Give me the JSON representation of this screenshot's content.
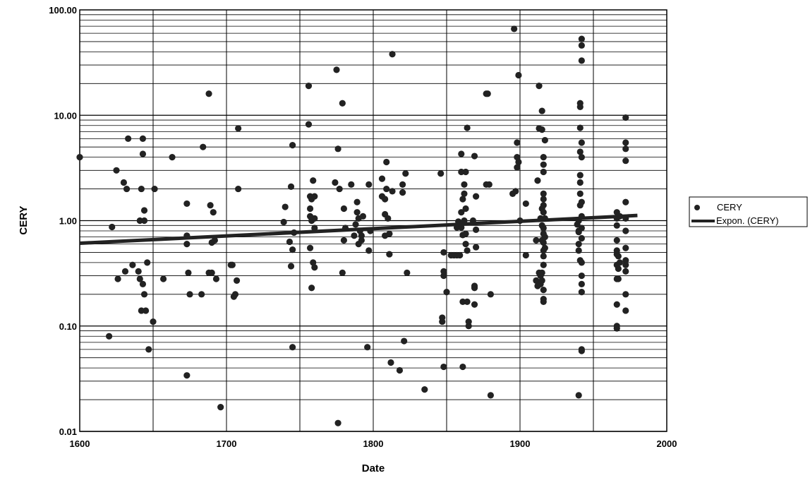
{
  "chart_data": {
    "type": "scatter",
    "title": "",
    "xlabel": "Date",
    "ylabel": "CERY",
    "xlim": [
      1600,
      2000
    ],
    "ylim": [
      0.01,
      100
    ],
    "y_scale": "log",
    "x_ticks": [
      "1600",
      "1700",
      "1800",
      "1900",
      "2000"
    ],
    "y_ticks": [
      "0.01",
      "0.10",
      "1.00",
      "10.00",
      "100.00"
    ],
    "grid": true,
    "legend": "right",
    "colors": {
      "points": "#222222",
      "trend": "#222222",
      "grid": "#000000"
    },
    "series": [
      {
        "name": "CERY",
        "kind": "scatter",
        "points": [
          [
            1600,
            4.0
          ],
          [
            1620,
            0.08
          ],
          [
            1622,
            0.87
          ],
          [
            1625,
            3.0
          ],
          [
            1626,
            0.28
          ],
          [
            1630,
            2.3
          ],
          [
            1631,
            0.33
          ],
          [
            1632,
            2.0
          ],
          [
            1633,
            6.0
          ],
          [
            1636,
            0.38
          ],
          [
            1640,
            0.33
          ],
          [
            1641,
            1.0
          ],
          [
            1641,
            0.28
          ],
          [
            1642,
            0.14
          ],
          [
            1642,
            2.0
          ],
          [
            1643,
            0.25
          ],
          [
            1643,
            4.3
          ],
          [
            1643,
            6.0
          ],
          [
            1644,
            1.25
          ],
          [
            1644,
            1.0
          ],
          [
            1644,
            0.2
          ],
          [
            1645,
            0.14
          ],
          [
            1646,
            0.4
          ],
          [
            1647,
            0.06
          ],
          [
            1650,
            0.11
          ],
          [
            1651,
            2.0
          ],
          [
            1657,
            0.28
          ],
          [
            1663,
            4.0
          ],
          [
            1673,
            1.45
          ],
          [
            1673,
            0.72
          ],
          [
            1673,
            0.6
          ],
          [
            1673,
            0.034
          ],
          [
            1674,
            0.32
          ],
          [
            1675,
            0.2
          ],
          [
            1683,
            0.2
          ],
          [
            1684,
            5.0
          ],
          [
            1688,
            16.0
          ],
          [
            1688,
            0.32
          ],
          [
            1689,
            1.4
          ],
          [
            1690,
            0.32
          ],
          [
            1690,
            0.62
          ],
          [
            1691,
            1.2
          ],
          [
            1692,
            0.65
          ],
          [
            1693,
            0.28
          ],
          [
            1696,
            0.017
          ],
          [
            1703,
            0.38
          ],
          [
            1704,
            0.38
          ],
          [
            1705,
            0.19
          ],
          [
            1706,
            0.2
          ],
          [
            1707,
            0.27
          ],
          [
            1708,
            7.5
          ],
          [
            1708,
            2.0
          ],
          [
            1739,
            0.97
          ],
          [
            1740,
            1.35
          ],
          [
            1743,
            0.63
          ],
          [
            1744,
            0.37
          ],
          [
            1744,
            2.1
          ],
          [
            1745,
            5.2
          ],
          [
            1745,
            0.063
          ],
          [
            1745,
            0.53
          ],
          [
            1746,
            0.77
          ],
          [
            1756,
            19.0
          ],
          [
            1756,
            8.2
          ],
          [
            1757,
            1.1
          ],
          [
            1757,
            1.7
          ],
          [
            1757,
            1.3
          ],
          [
            1757,
            0.55
          ],
          [
            1758,
            1.0
          ],
          [
            1758,
            0.23
          ],
          [
            1758,
            1.6
          ],
          [
            1759,
            0.4
          ],
          [
            1759,
            2.4
          ],
          [
            1760,
            1.05
          ],
          [
            1760,
            1.7
          ],
          [
            1760,
            0.36
          ],
          [
            1760,
            0.85
          ],
          [
            1774,
            2.3
          ],
          [
            1775,
            27.0
          ],
          [
            1776,
            0.012
          ],
          [
            1776,
            4.8
          ],
          [
            1777,
            2.0
          ],
          [
            1779,
            0.32
          ],
          [
            1779,
            13.0
          ],
          [
            1780,
            0.65
          ],
          [
            1780,
            1.3
          ],
          [
            1781,
            0.85
          ],
          [
            1785,
            2.2
          ],
          [
            1787,
            0.72
          ],
          [
            1788,
            0.92
          ],
          [
            1789,
            1.5
          ],
          [
            1789,
            1.2
          ],
          [
            1790,
            0.6
          ],
          [
            1790,
            1.05
          ],
          [
            1791,
            0.8
          ],
          [
            1792,
            0.72
          ],
          [
            1792,
            0.65
          ],
          [
            1793,
            1.1
          ],
          [
            1796,
            0.063
          ],
          [
            1797,
            2.2
          ],
          [
            1797,
            0.52
          ],
          [
            1798,
            0.8
          ],
          [
            1806,
            2.5
          ],
          [
            1806,
            1.7
          ],
          [
            1808,
            1.6
          ],
          [
            1808,
            0.72
          ],
          [
            1808,
            1.15
          ],
          [
            1809,
            3.6
          ],
          [
            1809,
            2.0
          ],
          [
            1810,
            1.05
          ],
          [
            1811,
            0.48
          ],
          [
            1811,
            0.75
          ],
          [
            1812,
            0.045
          ],
          [
            1813,
            38.0
          ],
          [
            1813,
            1.9
          ],
          [
            1818,
            0.038
          ],
          [
            1820,
            2.2
          ],
          [
            1820,
            1.85
          ],
          [
            1821,
            0.072
          ],
          [
            1822,
            2.8
          ],
          [
            1823,
            0.32
          ],
          [
            1835,
            0.025
          ],
          [
            1846,
            2.8
          ],
          [
            1847,
            0.12
          ],
          [
            1847,
            0.11
          ],
          [
            1848,
            0.33
          ],
          [
            1848,
            0.3
          ],
          [
            1848,
            0.5
          ],
          [
            1848,
            0.041
          ],
          [
            1850,
            0.21
          ],
          [
            1853,
            0.47
          ],
          [
            1855,
            0.47
          ],
          [
            1857,
            0.47
          ],
          [
            1857,
            0.86
          ],
          [
            1858,
            0.98
          ],
          [
            1859,
            0.47
          ],
          [
            1860,
            1.2
          ],
          [
            1860,
            4.3
          ],
          [
            1860,
            2.9
          ],
          [
            1860,
            0.86
          ],
          [
            1861,
            1.6
          ],
          [
            1861,
            0.041
          ],
          [
            1861,
            0.73
          ],
          [
            1861,
            0.17
          ],
          [
            1862,
            1.0
          ],
          [
            1862,
            2.2
          ],
          [
            1862,
            1.8
          ],
          [
            1863,
            1.3
          ],
          [
            1863,
            0.6
          ],
          [
            1863,
            0.75
          ],
          [
            1863,
            2.9
          ],
          [
            1864,
            0.52
          ],
          [
            1864,
            7.6
          ],
          [
            1864,
            0.17
          ],
          [
            1865,
            0.11
          ],
          [
            1865,
            0.1
          ],
          [
            1868,
            1.0
          ],
          [
            1869,
            0.24
          ],
          [
            1869,
            0.23
          ],
          [
            1869,
            0.16
          ],
          [
            1869,
            4.1
          ],
          [
            1870,
            0.82
          ],
          [
            1870,
            0.56
          ],
          [
            1870,
            1.7
          ],
          [
            1877,
            16.0
          ],
          [
            1877,
            2.2
          ],
          [
            1878,
            16.0
          ],
          [
            1879,
            2.2
          ],
          [
            1880,
            0.022
          ],
          [
            1880,
            0.2
          ],
          [
            1895,
            1.8
          ],
          [
            1896,
            66.0
          ],
          [
            1897,
            1.9
          ],
          [
            1898,
            3.2
          ],
          [
            1898,
            5.5
          ],
          [
            1898,
            4.0
          ],
          [
            1899,
            24.0
          ],
          [
            1899,
            3.6
          ],
          [
            1900,
            1.0
          ],
          [
            1904,
            1.45
          ],
          [
            1904,
            0.47
          ],
          [
            1911,
            0.65
          ],
          [
            1911,
            0.27
          ],
          [
            1912,
            2.4
          ],
          [
            1912,
            0.24
          ],
          [
            1913,
            19.0
          ],
          [
            1913,
            0.32
          ],
          [
            1913,
            7.5
          ],
          [
            1914,
            1.05
          ],
          [
            1914,
            0.25
          ],
          [
            1914,
            0.3
          ],
          [
            1915,
            7.3
          ],
          [
            1915,
            1.3
          ],
          [
            1915,
            0.9
          ],
          [
            1915,
            0.65
          ],
          [
            1915,
            11.0
          ],
          [
            1915,
            0.32
          ],
          [
            1915,
            0.27
          ],
          [
            1916,
            0.22
          ],
          [
            1916,
            1.8
          ],
          [
            1916,
            4.0
          ],
          [
            1916,
            3.4
          ],
          [
            1916,
            2.9
          ],
          [
            1916,
            1.6
          ],
          [
            1916,
            1.4
          ],
          [
            1916,
            1.2
          ],
          [
            1916,
            0.85
          ],
          [
            1916,
            0.75
          ],
          [
            1916,
            0.62
          ],
          [
            1916,
            0.52
          ],
          [
            1916,
            0.46
          ],
          [
            1916,
            0.38
          ],
          [
            1916,
            0.18
          ],
          [
            1916,
            0.17
          ],
          [
            1917,
            5.8
          ],
          [
            1917,
            1.05
          ],
          [
            1917,
            0.7
          ],
          [
            1917,
            0.55
          ],
          [
            1939,
            0.92
          ],
          [
            1940,
            0.78
          ],
          [
            1940,
            1.0
          ],
          [
            1940,
            0.8
          ],
          [
            1940,
            0.52
          ],
          [
            1940,
            0.6
          ],
          [
            1940,
            0.022
          ],
          [
            1941,
            1.4
          ],
          [
            1941,
            4.5
          ],
          [
            1941,
            7.6
          ],
          [
            1941,
            2.7
          ],
          [
            1941,
            2.3
          ],
          [
            1941,
            1.8
          ],
          [
            1941,
            12.0
          ],
          [
            1941,
            13.0
          ],
          [
            1941,
            0.42
          ],
          [
            1942,
            33.0
          ],
          [
            1942,
            53.0
          ],
          [
            1942,
            46.0
          ],
          [
            1942,
            5.5
          ],
          [
            1942,
            4.0
          ],
          [
            1942,
            1.5
          ],
          [
            1942,
            1.1
          ],
          [
            1942,
            0.85
          ],
          [
            1942,
            0.68
          ],
          [
            1942,
            0.4
          ],
          [
            1942,
            0.3
          ],
          [
            1942,
            0.25
          ],
          [
            1942,
            0.21
          ],
          [
            1942,
            0.06
          ],
          [
            1942,
            0.058
          ],
          [
            1966,
            1.2
          ],
          [
            1966,
            1.05
          ],
          [
            1966,
            0.9
          ],
          [
            1966,
            0.65
          ],
          [
            1966,
            0.52
          ],
          [
            1966,
            0.48
          ],
          [
            1966,
            0.38
          ],
          [
            1966,
            0.28
          ],
          [
            1966,
            0.16
          ],
          [
            1966,
            0.1
          ],
          [
            1966,
            0.095
          ],
          [
            1967,
            0.46
          ],
          [
            1967,
            0.35
          ],
          [
            1967,
            0.28
          ],
          [
            1968,
            0.4
          ],
          [
            1968,
            1.1
          ],
          [
            1972,
            9.5
          ],
          [
            1972,
            5.5
          ],
          [
            1972,
            4.8
          ],
          [
            1972,
            3.7
          ],
          [
            1972,
            1.5
          ],
          [
            1972,
            1.05
          ],
          [
            1972,
            0.8
          ],
          [
            1972,
            0.55
          ],
          [
            1972,
            0.42
          ],
          [
            1972,
            0.38
          ],
          [
            1972,
            0.2
          ],
          [
            1972,
            0.14
          ],
          [
            1972,
            0.33
          ]
        ]
      },
      {
        "name": "Expon. (CERY)",
        "kind": "trendline",
        "x": [
          1600,
          1980
        ],
        "y": [
          0.61,
          1.12
        ]
      }
    ]
  }
}
